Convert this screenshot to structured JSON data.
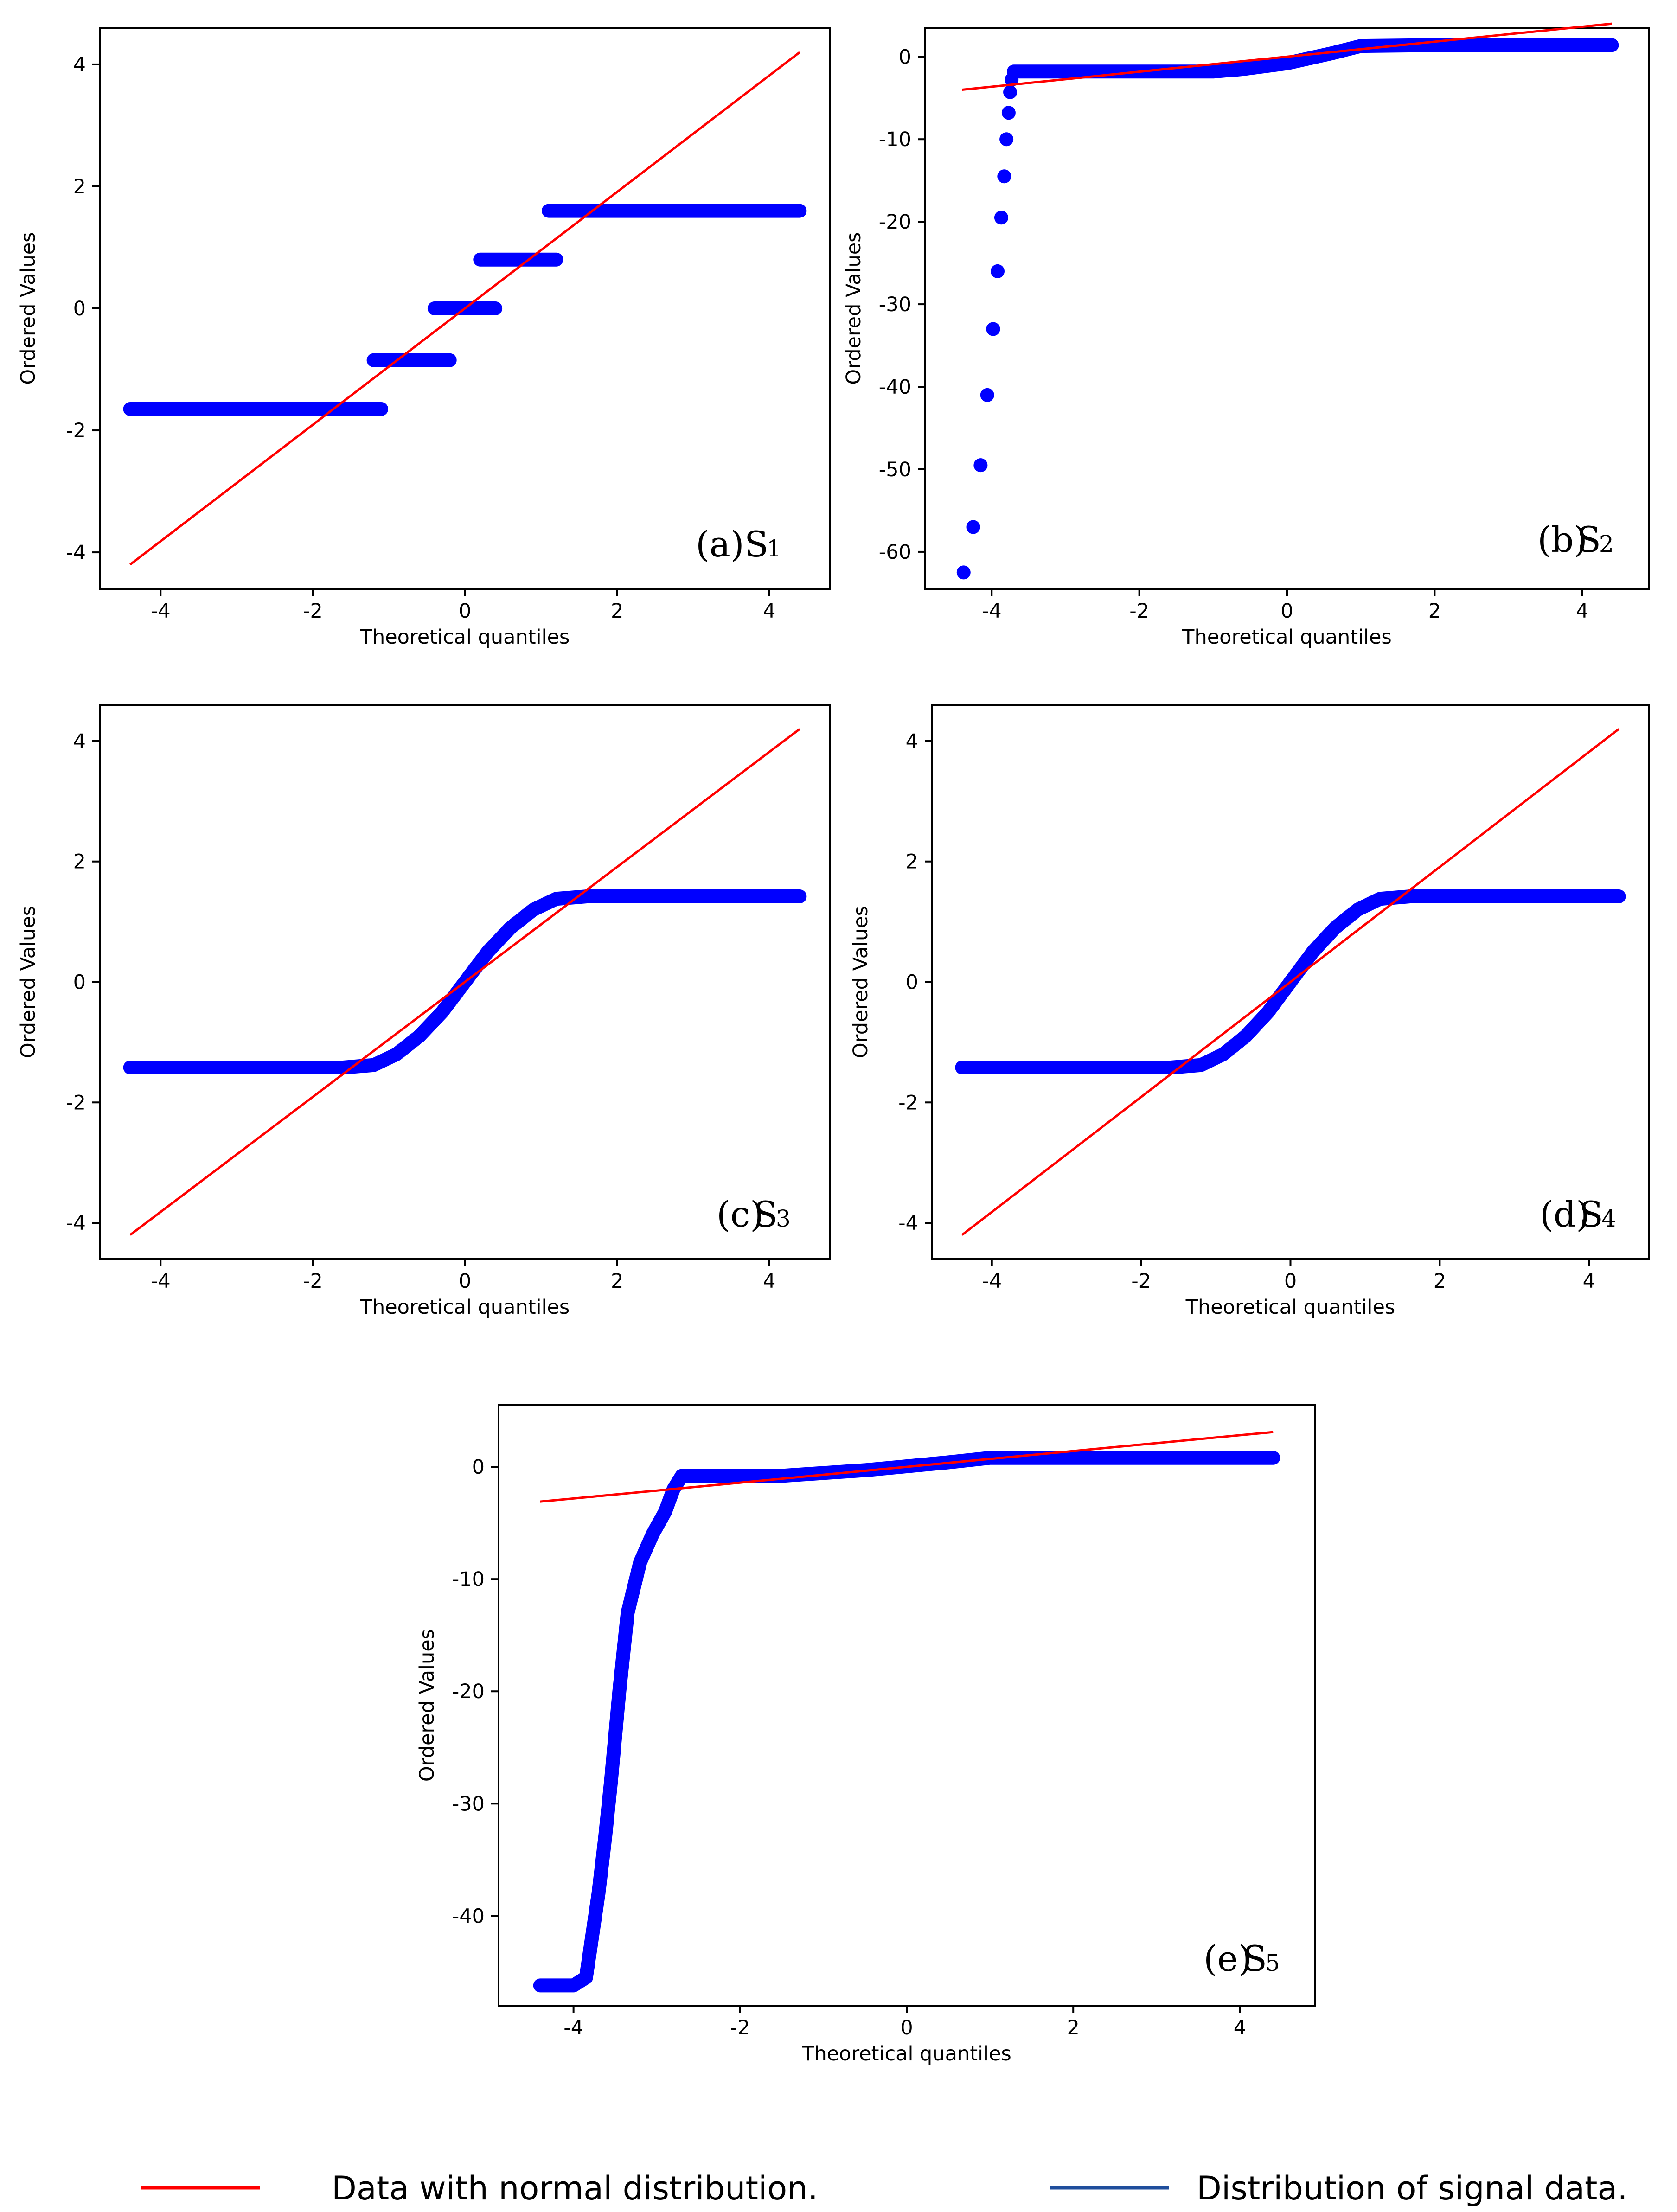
{
  "colors": {
    "data_points": "#0000ff",
    "normal_line": "#ff0000",
    "legend_signal_line": "#1f4e9c",
    "frame": "#000000"
  },
  "chart_data": [
    {
      "type": "scatter",
      "id": "a",
      "panel_label": "(a)",
      "signal": "S",
      "signal_index": "1",
      "xlabel": "Theoretical quantiles",
      "ylabel": "Ordered Values",
      "xlim": [
        -4.8,
        4.8
      ],
      "ylim": [
        -4.6,
        4.6
      ],
      "xticks": [
        -4,
        -2,
        0,
        2,
        4
      ],
      "xtick_labels": [
        "-4",
        "-2",
        "0",
        "2",
        "4"
      ],
      "yticks": [
        -4,
        -2,
        0,
        2,
        4
      ],
      "ytick_labels": [
        "-4",
        "-2",
        "0",
        "2",
        "4"
      ],
      "fit_line": {
        "x": [
          -4.4,
          4.4
        ],
        "y": [
          -4.2,
          4.2
        ]
      },
      "segments": [
        {
          "x": [
            -4.4,
            -1.1
          ],
          "y": -1.65
        },
        {
          "x": [
            -1.2,
            -0.2
          ],
          "y": -0.85
        },
        {
          "x": [
            -0.4,
            0.4
          ],
          "y": 0.0
        },
        {
          "x": [
            0.2,
            1.2
          ],
          "y": 0.8
        },
        {
          "x": [
            1.1,
            4.4
          ],
          "y": 1.6
        }
      ]
    },
    {
      "type": "scatter",
      "id": "b",
      "panel_label": "(b)",
      "signal": "S",
      "signal_index": "2",
      "xlabel": "Theoretical quantiles",
      "ylabel": "Ordered Values",
      "xlim": [
        -4.9,
        4.9
      ],
      "ylim": [
        -64.5,
        3.5
      ],
      "xticks": [
        -4,
        -2,
        0,
        2,
        4
      ],
      "xtick_labels": [
        "-4",
        "-2",
        "0",
        "2",
        "4"
      ],
      "yticks": [
        0,
        -10,
        -20,
        -30,
        -40,
        -50,
        -60
      ],
      "ytick_labels": [
        "0",
        "-10",
        "-20",
        "-30",
        "-40",
        "-50",
        "-60"
      ],
      "fit_line": {
        "x": [
          -4.4,
          4.4
        ],
        "y": [
          -4.0,
          4.0
        ]
      },
      "curve": [
        [
          -3.7,
          -1.8
        ],
        [
          -1.0,
          -1.8
        ],
        [
          -0.6,
          -1.5
        ],
        [
          0.0,
          -0.8
        ],
        [
          0.6,
          0.4
        ],
        [
          1.0,
          1.3
        ],
        [
          2.0,
          1.4
        ],
        [
          4.4,
          1.4
        ]
      ],
      "outliers": [
        [
          -4.38,
          -62.5
        ],
        [
          -4.25,
          -57.0
        ],
        [
          -4.15,
          -49.5
        ],
        [
          -4.06,
          -41.0
        ],
        [
          -3.98,
          -33.0
        ],
        [
          -3.92,
          -26.0
        ],
        [
          -3.87,
          -19.5
        ],
        [
          -3.83,
          -14.5
        ],
        [
          -3.8,
          -10.0
        ],
        [
          -3.77,
          -6.8
        ],
        [
          -3.75,
          -4.3
        ],
        [
          -3.73,
          -2.8
        ]
      ]
    },
    {
      "type": "scatter",
      "id": "c",
      "panel_label": "(c)",
      "signal": "S",
      "signal_index": "3",
      "xlabel": "Theoretical quantiles",
      "ylabel": "Ordered Values",
      "xlim": [
        -4.8,
        4.8
      ],
      "ylim": [
        -4.6,
        4.6
      ],
      "xticks": [
        -4,
        -2,
        0,
        2,
        4
      ],
      "xtick_labels": [
        "-4",
        "-2",
        "0",
        "2",
        "4"
      ],
      "yticks": [
        -4,
        -2,
        0,
        2,
        4
      ],
      "ytick_labels": [
        "-4",
        "-2",
        "0",
        "2",
        "4"
      ],
      "fit_line": {
        "x": [
          -4.4,
          4.4
        ],
        "y": [
          -4.2,
          4.2
        ]
      },
      "curve": [
        [
          -4.4,
          -1.42
        ],
        [
          -1.6,
          -1.42
        ],
        [
          -1.2,
          -1.38
        ],
        [
          -0.9,
          -1.2
        ],
        [
          -0.6,
          -0.9
        ],
        [
          -0.3,
          -0.5
        ],
        [
          0.0,
          0.0
        ],
        [
          0.3,
          0.5
        ],
        [
          0.6,
          0.9
        ],
        [
          0.9,
          1.2
        ],
        [
          1.2,
          1.38
        ],
        [
          1.6,
          1.42
        ],
        [
          4.4,
          1.42
        ]
      ]
    },
    {
      "type": "scatter",
      "id": "d",
      "panel_label": "(d)",
      "signal": "S",
      "signal_index": "4",
      "xlabel": "Theoretical quantiles",
      "ylabel": "Ordered Values",
      "xlim": [
        -4.8,
        4.8
      ],
      "ylim": [
        -4.6,
        4.6
      ],
      "xticks": [
        -4,
        -2,
        0,
        2,
        4
      ],
      "xtick_labels": [
        "-4",
        "-2",
        "0",
        "2",
        "4"
      ],
      "yticks": [
        -4,
        -2,
        0,
        2,
        4
      ],
      "ytick_labels": [
        "-4",
        "-2",
        "0",
        "2",
        "4"
      ],
      "fit_line": {
        "x": [
          -4.4,
          4.4
        ],
        "y": [
          -4.2,
          4.2
        ]
      },
      "curve": [
        [
          -4.4,
          -1.42
        ],
        [
          -1.6,
          -1.42
        ],
        [
          -1.2,
          -1.38
        ],
        [
          -0.9,
          -1.2
        ],
        [
          -0.6,
          -0.9
        ],
        [
          -0.3,
          -0.5
        ],
        [
          0.0,
          0.0
        ],
        [
          0.3,
          0.5
        ],
        [
          0.6,
          0.9
        ],
        [
          0.9,
          1.2
        ],
        [
          1.2,
          1.38
        ],
        [
          1.6,
          1.42
        ],
        [
          4.4,
          1.42
        ]
      ]
    },
    {
      "type": "scatter",
      "id": "e",
      "panel_label": "(e)",
      "signal": "S",
      "signal_index": "5",
      "xlabel": "Theoretical quantiles",
      "ylabel": "Ordered Values",
      "xlim": [
        -4.9,
        4.9
      ],
      "ylim": [
        -48,
        5.5
      ],
      "xticks": [
        -4,
        -2,
        0,
        2,
        4
      ],
      "xtick_labels": [
        "-4",
        "-2",
        "0",
        "2",
        "4"
      ],
      "yticks": [
        0,
        -10,
        -20,
        -30,
        -40
      ],
      "ytick_labels": [
        "0",
        "-10",
        "-20",
        "-30",
        "-40"
      ],
      "fit_line": {
        "x": [
          -4.4,
          4.4
        ],
        "y": [
          -3.1,
          3.1
        ]
      },
      "curve": [
        [
          -4.4,
          -46.2
        ],
        [
          -4.0,
          -46.2
        ],
        [
          -3.85,
          -45.5
        ],
        [
          -3.78,
          -42.0
        ],
        [
          -3.7,
          -38.0
        ],
        [
          -3.62,
          -33.0
        ],
        [
          -3.55,
          -28.0
        ],
        [
          -3.45,
          -20.0
        ],
        [
          -3.35,
          -13.0
        ],
        [
          -3.2,
          -8.5
        ],
        [
          -3.05,
          -6.0
        ],
        [
          -2.9,
          -4.0
        ],
        [
          -2.8,
          -2.0
        ],
        [
          -2.7,
          -0.8
        ],
        [
          -1.5,
          -0.8
        ],
        [
          -0.5,
          -0.3
        ],
        [
          0.5,
          0.4
        ],
        [
          1.0,
          0.8
        ],
        [
          4.4,
          0.8
        ]
      ]
    }
  ],
  "legend": [
    {
      "label": "Data with normal distribution."
    },
    {
      "label": "Distribution of signal data."
    }
  ]
}
